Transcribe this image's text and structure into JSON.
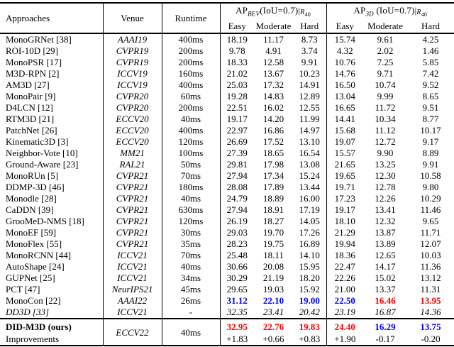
{
  "colors": {
    "best": "#ff0000",
    "second": "#0000ff"
  },
  "header": {
    "approaches": "Approaches",
    "venue": "Venue",
    "runtime": "Runtime",
    "bev": {
      "ap": "AP",
      "sub": "BEV",
      "mid": "(IoU=0.7)|",
      "r": "R",
      "rsub": "40"
    },
    "ap3d": {
      "ap": "AP",
      "sub": "3D",
      "mid": " (IoU=0.7)|",
      "r": "R",
      "rsub": "40"
    },
    "subcols": [
      "Easy",
      "Moderate",
      "Hard"
    ]
  },
  "rows": [
    {
      "name": "MonoGRNet [38]",
      "venue": "AAAI19",
      "runtime": "400ms",
      "values": [
        "18.19",
        "11.17",
        "8.73",
        "15.74",
        "9.61",
        "4.25"
      ]
    },
    {
      "name": "ROI-10D [29]",
      "venue": "CVPR19",
      "runtime": "200ms",
      "values": [
        "9.78",
        "4.91",
        "3.74",
        "4.32",
        "2.02",
        "1.46"
      ]
    },
    {
      "name": "MonoPSR [17]",
      "venue": "CVPR19",
      "runtime": "200ms",
      "values": [
        "18.33",
        "12.58",
        "9.91",
        "10.76",
        "7.25",
        "5.85"
      ]
    },
    {
      "name": "M3D-RPN [2]",
      "venue": "ICCV19",
      "runtime": "160ms",
      "values": [
        "21.02",
        "13.67",
        "10.23",
        "14.76",
        "9.71",
        "7.42"
      ]
    },
    {
      "name": "AM3D [27]",
      "venue": "ICCV19",
      "runtime": "400ms",
      "values": [
        "25.03",
        "17.32",
        "14.91",
        "16.50",
        "10.74",
        "9.52"
      ]
    },
    {
      "name": "MonoPair [9]",
      "venue": "CVPR20",
      "runtime": "60ms",
      "values": [
        "19.28",
        "14.83",
        "12.89",
        "13.04",
        "9.99",
        "8.65"
      ]
    },
    {
      "name": "D4LCN [12]",
      "venue": "CVPR20",
      "runtime": "200ms",
      "values": [
        "22.51",
        "16.02",
        "12.55",
        "16.65",
        "11.72",
        "9.51"
      ]
    },
    {
      "name": "RTM3D [21]",
      "venue": "ECCV20",
      "runtime": "40ms",
      "values": [
        "19.17",
        "14.20",
        "11.99",
        "14.41",
        "10.34",
        "8.77"
      ]
    },
    {
      "name": "PatchNet [26]",
      "venue": "ECCV20",
      "runtime": "400ms",
      "values": [
        "22.97",
        "16.86",
        "14.97",
        "15.68",
        "11.12",
        "10.17"
      ]
    },
    {
      "name": "Kinematic3D [3]",
      "venue": "ECCV20",
      "runtime": "120ms",
      "values": [
        "26.69",
        "17.52",
        "13.10",
        "19.07",
        "12.72",
        "9.17"
      ]
    },
    {
      "name": "Neighbor-Vote [10]",
      "venue": "MM21",
      "runtime": "100ms",
      "values": [
        "27.39",
        "18.65",
        "16.54",
        "15.57",
        "9.90",
        "8.89"
      ]
    },
    {
      "name": "Ground-Aware [23]",
      "venue": "RAL21",
      "runtime": "50ms",
      "values": [
        "29.81",
        "17.98",
        "13.08",
        "21.65",
        "13.25",
        "9.91"
      ]
    },
    {
      "name": "MonoRUn [5]",
      "venue": "CVPR21",
      "runtime": "70ms",
      "values": [
        "27.94",
        "17.34",
        "15.24",
        "19.65",
        "12.30",
        "10.58"
      ]
    },
    {
      "name": "DDMP-3D [46]",
      "venue": "CVPR21",
      "runtime": "180ms",
      "values": [
        "28.08",
        "17.89",
        "13.44",
        "19.71",
        "12.78",
        "9.80"
      ]
    },
    {
      "name": "Monodle [28]",
      "venue": "CVPR21",
      "runtime": "40ms",
      "values": [
        "24.79",
        "18.89",
        "16.00",
        "17.23",
        "12.26",
        "10.29"
      ]
    },
    {
      "name": "CaDDN [39]",
      "venue": "CVPR21",
      "runtime": "630ms",
      "values": [
        "27.94",
        "18.91",
        "17.19",
        "19.17",
        "13.41",
        "11.46"
      ]
    },
    {
      "name": "GrooMeD-NMS [18]",
      "venue": "CVPR21",
      "runtime": "120ms",
      "values": [
        "26.19",
        "18.27",
        "14.05",
        "18.10",
        "12.32",
        "9.65"
      ]
    },
    {
      "name": "MonoEF [59]",
      "venue": "CVPR21",
      "runtime": "30ms",
      "values": [
        "29.03",
        "19.70",
        "17.26",
        "21.29",
        "13.87",
        "11.71"
      ]
    },
    {
      "name": "MonoFlex [55]",
      "venue": "CVPR21",
      "runtime": "35ms",
      "values": [
        "28.23",
        "19.75",
        "16.89",
        "19.94",
        "13.89",
        "12.07"
      ]
    },
    {
      "name": "MonoRCNN [44]",
      "venue": "ICCV21",
      "runtime": "70ms",
      "values": [
        "25.48",
        "18.11",
        "14.10",
        "18.36",
        "12.65",
        "10.03"
      ]
    },
    {
      "name": "AutoShape [24]",
      "venue": "ICCV21",
      "runtime": "40ms",
      "values": [
        "30.66",
        "20.08",
        "15.95",
        "22.47",
        "14.17",
        "11.36"
      ]
    },
    {
      "name": "GUPNet [25]",
      "venue": "ICCV21",
      "runtime": "34ms",
      "values": [
        "30.29",
        "21.19",
        "18.20",
        "22.26",
        "15.02",
        "13.12"
      ]
    },
    {
      "name": "PCT [47]",
      "venue": "NeurIPS21",
      "runtime": "45ms",
      "values": [
        "29.65",
        "19.03",
        "15.92",
        "21.00",
        "13.37",
        "11.31"
      ]
    },
    {
      "name": "MonoCon [22]",
      "venue": "AAAI22",
      "runtime": "26ms",
      "values": [
        "31.12",
        "22.10",
        "19.00",
        "22.50",
        "16.46",
        "13.95"
      ],
      "styles": [
        "second",
        "second",
        "second",
        "second",
        "best",
        "best"
      ]
    },
    {
      "name": "DD3D [33]",
      "venue": "ICCV21",
      "runtime": "-",
      "values": [
        "32.35",
        "23.41",
        "20.42",
        "23.19",
        "16.87",
        "14.36"
      ],
      "italic": true
    }
  ],
  "final": {
    "name": "DID-M3D (ours)",
    "row2_name": "Improvements",
    "venue": "ECCV22",
    "runtime": "40ms",
    "values": [
      "32.95",
      "22.76",
      "19.83",
      "24.40",
      "16.29",
      "13.75"
    ],
    "styles": [
      "best",
      "best",
      "best",
      "best",
      "second",
      "second"
    ],
    "improvements": [
      "+1.83",
      "+0.66",
      "+0.83",
      "+1.90",
      "-0.17",
      "-0.20"
    ]
  }
}
